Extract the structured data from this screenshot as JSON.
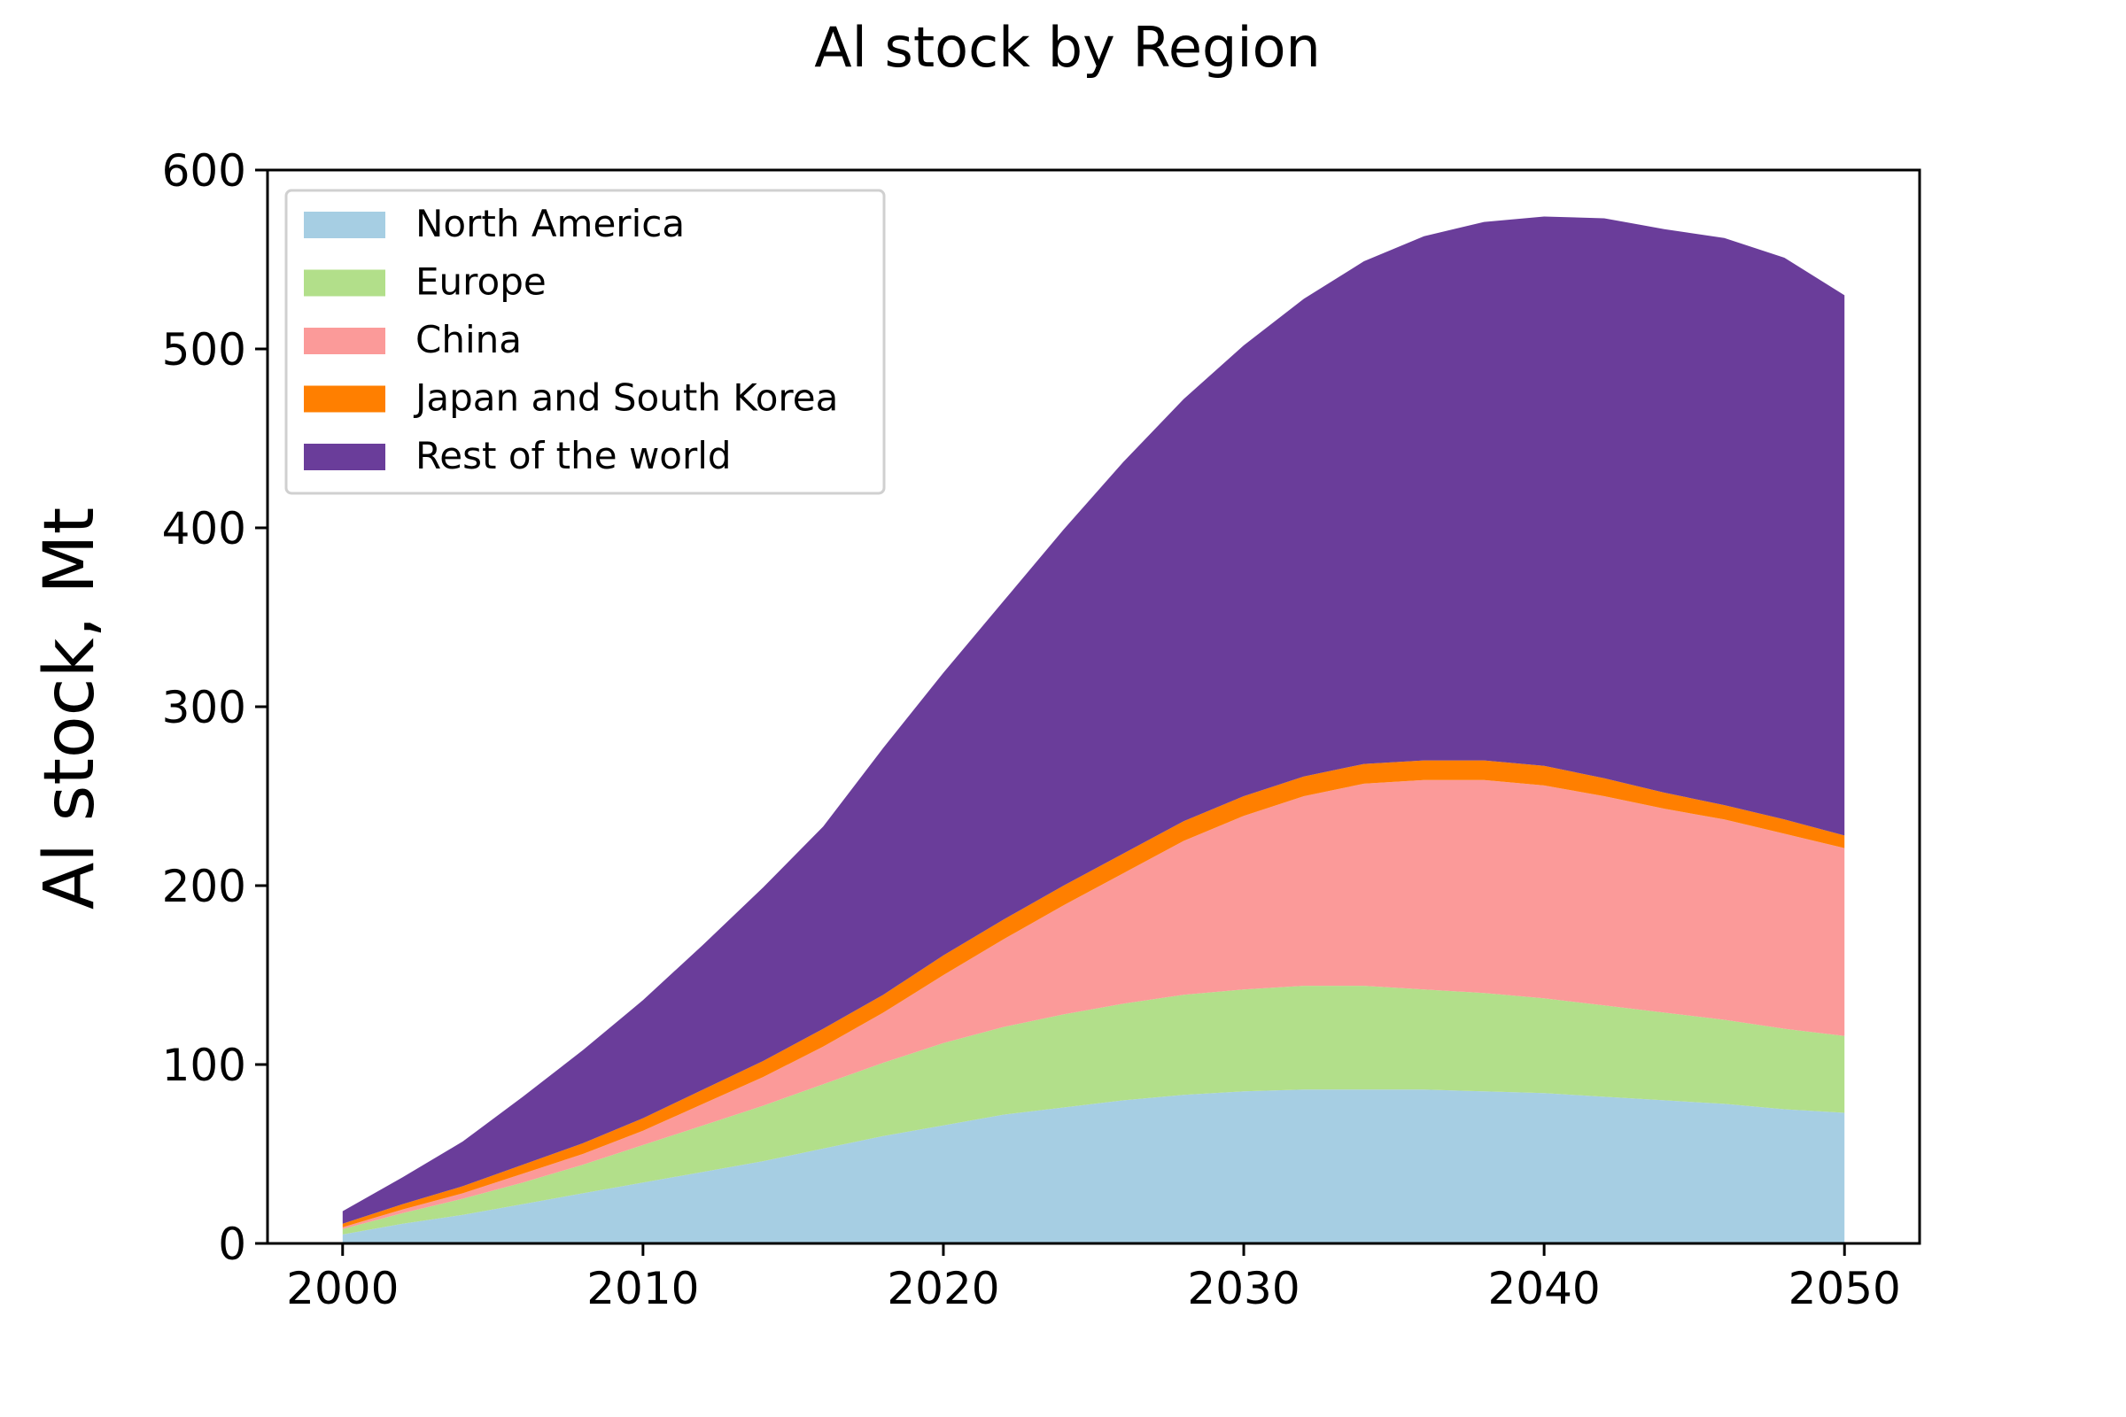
{
  "chart_data": {
    "type": "area",
    "stacked": true,
    "title": "Al stock by Region",
    "xlabel": "",
    "ylabel": "Al stock, Mt",
    "xlim": [
      1997.5,
      2052.5
    ],
    "ylim": [
      0,
      600
    ],
    "xticks": [
      2000,
      2010,
      2020,
      2030,
      2040,
      2050
    ],
    "yticks": [
      0,
      100,
      200,
      300,
      400,
      500,
      600
    ],
    "grid": false,
    "legend_position": "top-left",
    "x": [
      2000,
      2002,
      2004,
      2006,
      2008,
      2010,
      2012,
      2014,
      2016,
      2018,
      2020,
      2022,
      2024,
      2026,
      2028,
      2030,
      2032,
      2034,
      2036,
      2038,
      2040,
      2042,
      2044,
      2046,
      2048,
      2050
    ],
    "series": [
      {
        "name": "North America",
        "color": "#a6cee3",
        "values": [
          5,
          11,
          16,
          22,
          28,
          34,
          40,
          46,
          53,
          60,
          66,
          72,
          76,
          80,
          83,
          85,
          86,
          86,
          86,
          85,
          84,
          82,
          80,
          78,
          75,
          73
        ]
      },
      {
        "name": "Europe",
        "color": "#b2df8a",
        "values": [
          3,
          6,
          9,
          12,
          16,
          21,
          26,
          31,
          36,
          41,
          46,
          49,
          52,
          54,
          56,
          57,
          58,
          58,
          56,
          55,
          53,
          51,
          49,
          47,
          45,
          43
        ]
      },
      {
        "name": "China",
        "color": "#fb9a99",
        "values": [
          1,
          2,
          3,
          5,
          6,
          8,
          12,
          16,
          21,
          28,
          38,
          49,
          61,
          73,
          86,
          97,
          106,
          113,
          117,
          119,
          119,
          117,
          114,
          112,
          109,
          105
        ]
      },
      {
        "name": "Japan and South Korea",
        "color": "#ff7f00",
        "values": [
          2,
          3,
          4,
          5,
          6,
          7,
          8,
          9,
          10,
          10,
          11,
          11,
          11,
          11,
          11,
          11,
          11,
          11,
          11,
          11,
          11,
          10,
          9,
          8,
          8,
          7
        ]
      },
      {
        "name": "Rest of the world",
        "color": "#6a3d9a",
        "values": [
          7,
          15,
          25,
          38,
          52,
          66,
          81,
          97,
          113,
          138,
          158,
          178,
          199,
          219,
          236,
          252,
          267,
          281,
          293,
          301,
          307,
          313,
          315,
          317,
          314,
          302
        ]
      }
    ]
  }
}
